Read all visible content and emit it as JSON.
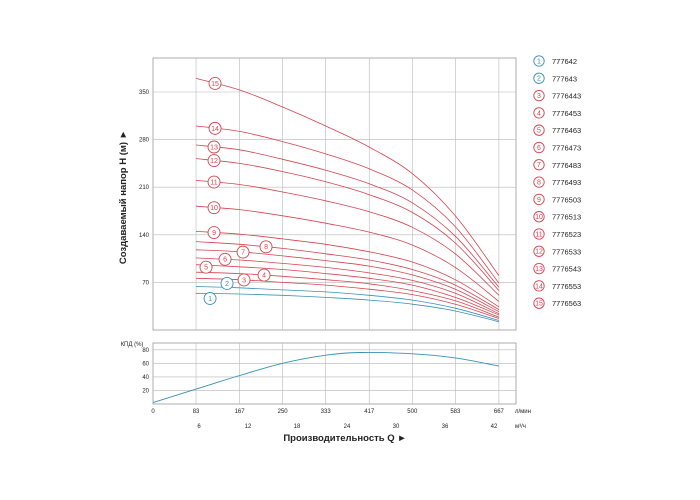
{
  "chart_data": [
    {
      "type": "line",
      "ylabel": "Создаваемый напор H (м) ►",
      "y_ticks": [
        70,
        140,
        210,
        280,
        350
      ],
      "ylim": [
        0,
        400
      ],
      "x_unit": "л/мин",
      "x_ticks": [
        83,
        167,
        250,
        333,
        417,
        500,
        583,
        667
      ],
      "xlim": [
        0,
        700
      ],
      "grid": true,
      "legend_position": "right",
      "series": [
        {
          "name": "777642",
          "marker": "1",
          "color": "#3a8fb5",
          "x": [
            83,
            167,
            250,
            333,
            417,
            500,
            583,
            667
          ],
          "y": [
            54,
            53,
            51,
            48,
            44,
            38,
            28,
            12
          ]
        },
        {
          "name": "777643",
          "marker": "2",
          "color": "#3a8fb5",
          "x": [
            83,
            167,
            250,
            333,
            417,
            500,
            583,
            667
          ],
          "y": [
            64,
            62,
            59,
            56,
            51,
            44,
            32,
            14
          ]
        },
        {
          "name": "7776443",
          "marker": "3",
          "color": "#d6434f",
          "x": [
            83,
            167,
            250,
            333,
            417,
            500,
            583,
            667
          ],
          "y": [
            76,
            74,
            70,
            66,
            60,
            52,
            38,
            17
          ]
        },
        {
          "name": "7776453",
          "marker": "4",
          "color": "#d6434f",
          "x": [
            83,
            167,
            250,
            333,
            417,
            500,
            583,
            667
          ],
          "y": [
            85,
            83,
            79,
            74,
            68,
            58,
            43,
            19
          ]
        },
        {
          "name": "7776463",
          "marker": "5",
          "color": "#d6434f",
          "x": [
            83,
            167,
            250,
            333,
            417,
            500,
            583,
            667
          ],
          "y": [
            96,
            93,
            89,
            83,
            76,
            66,
            48,
            22
          ]
        },
        {
          "name": "7776473",
          "marker": "6",
          "color": "#d6434f",
          "x": [
            83,
            167,
            250,
            333,
            417,
            500,
            583,
            667
          ],
          "y": [
            106,
            103,
            98,
            92,
            84,
            73,
            54,
            24
          ]
        },
        {
          "name": "7776483",
          "marker": "7",
          "color": "#d6434f",
          "x": [
            83,
            167,
            250,
            333,
            417,
            500,
            583,
            667
          ],
          "y": [
            118,
            115,
            109,
            102,
            94,
            81,
            60,
            27
          ]
        },
        {
          "name": "7776493",
          "marker": "8",
          "color": "#d6434f",
          "x": [
            83,
            167,
            250,
            333,
            417,
            500,
            583,
            667
          ],
          "y": [
            130,
            126,
            120,
            112,
            103,
            89,
            66,
            30
          ]
        },
        {
          "name": "7776503",
          "marker": "9",
          "color": "#d6434f",
          "x": [
            83,
            167,
            250,
            333,
            417,
            500,
            583,
            667
          ],
          "y": [
            145,
            141,
            134,
            126,
            115,
            100,
            74,
            34
          ]
        },
        {
          "name": "7776513",
          "marker": "10",
          "color": "#d6434f",
          "x": [
            83,
            167,
            250,
            333,
            417,
            500,
            583,
            667
          ],
          "y": [
            182,
            177,
            168,
            157,
            144,
            125,
            92,
            42
          ]
        },
        {
          "name": "7776523",
          "marker": "11",
          "color": "#d6434f",
          "x": [
            83,
            167,
            250,
            333,
            417,
            500,
            583,
            667
          ],
          "y": [
            220,
            214,
            203,
            190,
            174,
            151,
            112,
            51
          ]
        },
        {
          "name": "7776533",
          "marker": "12",
          "color": "#d6434f",
          "x": [
            83,
            167,
            250,
            333,
            417,
            500,
            583,
            667
          ],
          "y": [
            252,
            245,
            233,
            218,
            199,
            173,
            128,
            58
          ]
        },
        {
          "name": "7776543",
          "marker": "13",
          "color": "#d6434f",
          "x": [
            83,
            167,
            250,
            333,
            417,
            500,
            583,
            667
          ],
          "y": [
            272,
            265,
            251,
            235,
            215,
            187,
            138,
            63
          ]
        },
        {
          "name": "7776553",
          "marker": "14",
          "color": "#d6434f",
          "x": [
            83,
            167,
            250,
            333,
            417,
            500,
            583,
            667
          ],
          "y": [
            300,
            292,
            277,
            259,
            237,
            206,
            152,
            69
          ]
        },
        {
          "name": "7776563",
          "marker": "15",
          "color": "#d6434f",
          "x": [
            83,
            167,
            250,
            333,
            417,
            500,
            583,
            667
          ],
          "y": [
            370,
            353,
            328,
            300,
            269,
            230,
            168,
            80
          ]
        }
      ]
    },
    {
      "type": "line",
      "ylabel": "КПД (%)",
      "y_ticks": [
        20,
        40,
        60,
        80
      ],
      "ylim": [
        0,
        90
      ],
      "xlabel": "Производительность Q ►",
      "x_ticks": [
        0,
        83,
        167,
        250,
        333,
        417,
        500,
        583,
        667
      ],
      "x_unit": "л/мин",
      "x2_ticks": [
        6,
        12,
        18,
        24,
        30,
        36,
        42
      ],
      "x2_unit": "м³/ч",
      "xlim": [
        0,
        700
      ],
      "grid": true,
      "series": [
        {
          "color": "#3a8fb5",
          "x": [
            0,
            83,
            167,
            250,
            333,
            400,
            500,
            583,
            667
          ],
          "y": [
            2,
            22,
            42,
            60,
            72,
            76,
            74,
            68,
            56
          ]
        }
      ]
    }
  ]
}
